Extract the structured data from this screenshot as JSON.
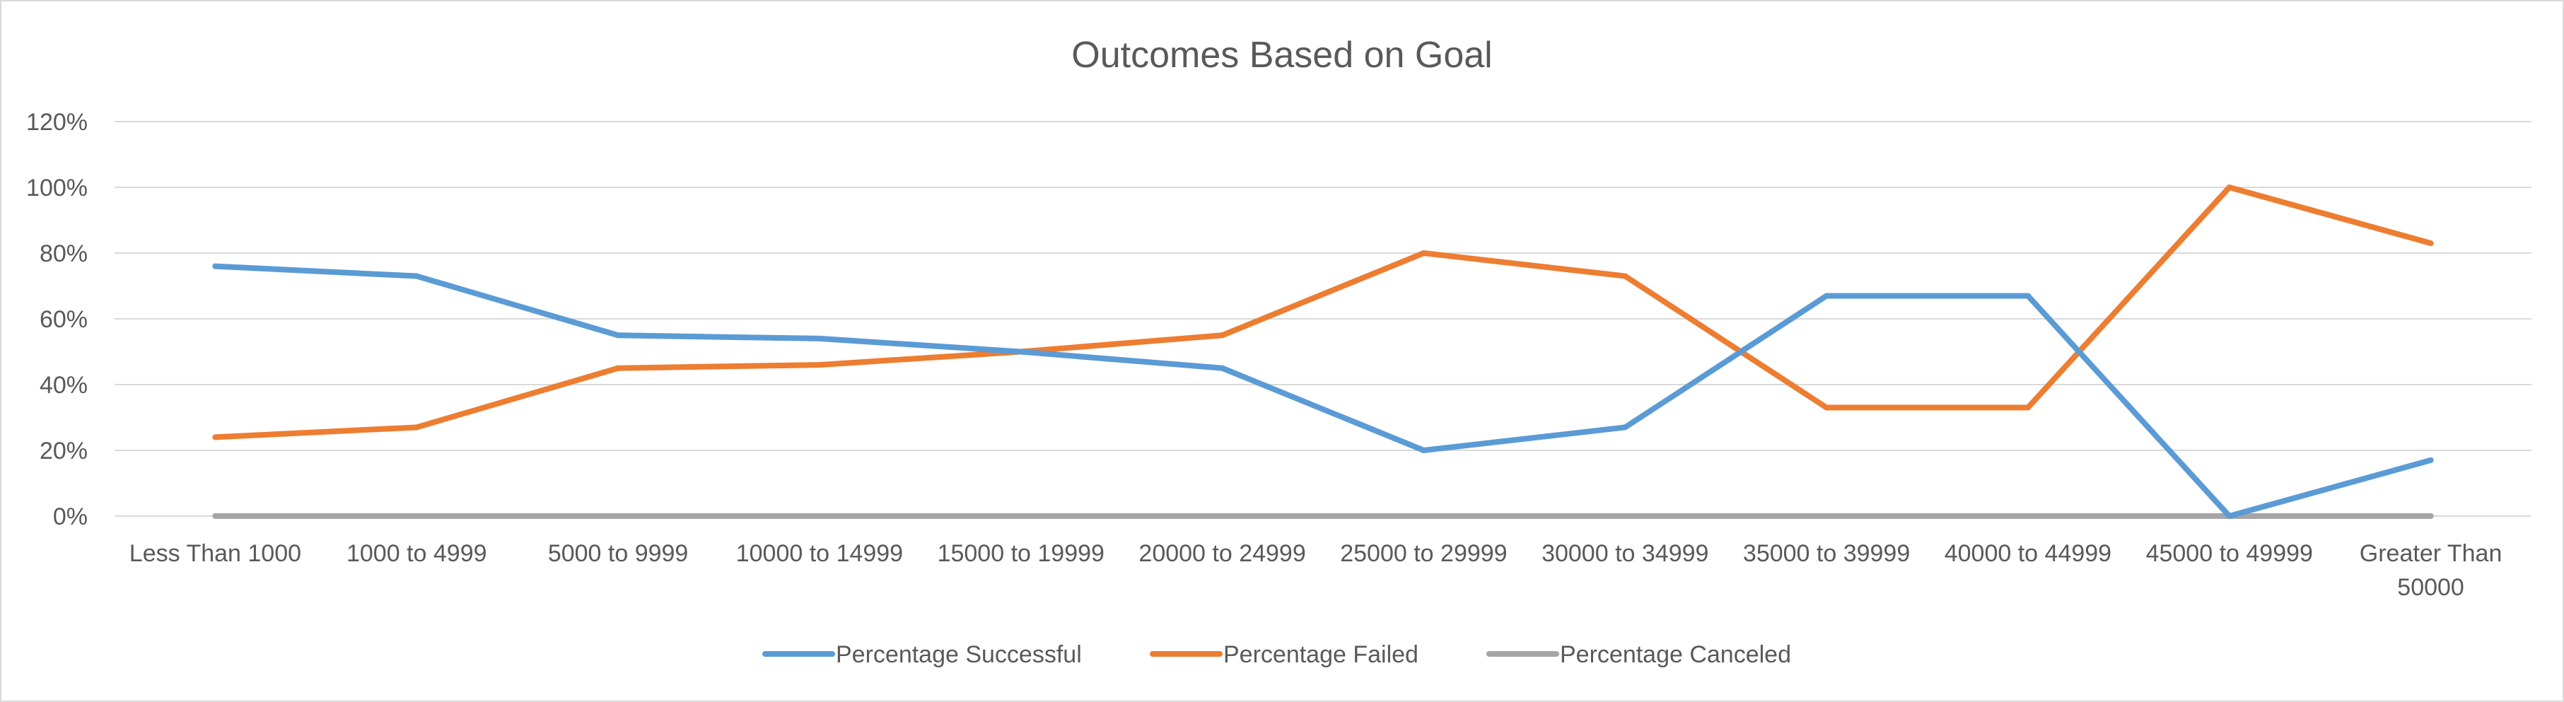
{
  "chart_data": {
    "type": "line",
    "title": "Outcomes Based on Goal",
    "xlabel": "",
    "ylabel": "",
    "categories": [
      "Less Than 1000",
      "1000 to 4999",
      "5000 to 9999",
      "10000 to 14999",
      "15000 to 19999",
      "20000 to 24999",
      "25000 to 29999",
      "30000 to 34999",
      "35000 to 39999",
      "40000 to 44999",
      "45000 to 49999",
      "Greater Than 50000"
    ],
    "ylim": [
      0,
      1.2
    ],
    "y_ticks": [
      "0%",
      "20%",
      "40%",
      "60%",
      "80%",
      "100%",
      "120%"
    ],
    "grid": true,
    "legend_position": "bottom",
    "series": [
      {
        "name": "Percentage Successful",
        "color": "#5b9bd5",
        "values": [
          0.76,
          0.73,
          0.55,
          0.54,
          0.5,
          0.45,
          0.2,
          0.27,
          0.67,
          0.67,
          0.0,
          0.17
        ]
      },
      {
        "name": "Percentage Failed",
        "color": "#ed7d31",
        "values": [
          0.24,
          0.27,
          0.45,
          0.46,
          0.5,
          0.55,
          0.8,
          0.73,
          0.33,
          0.33,
          1.0,
          0.83
        ]
      },
      {
        "name": "Percentage Canceled",
        "color": "#a5a5a5",
        "values": [
          0,
          0,
          0,
          0,
          0,
          0,
          0,
          0,
          0,
          0,
          0,
          0
        ]
      }
    ]
  }
}
